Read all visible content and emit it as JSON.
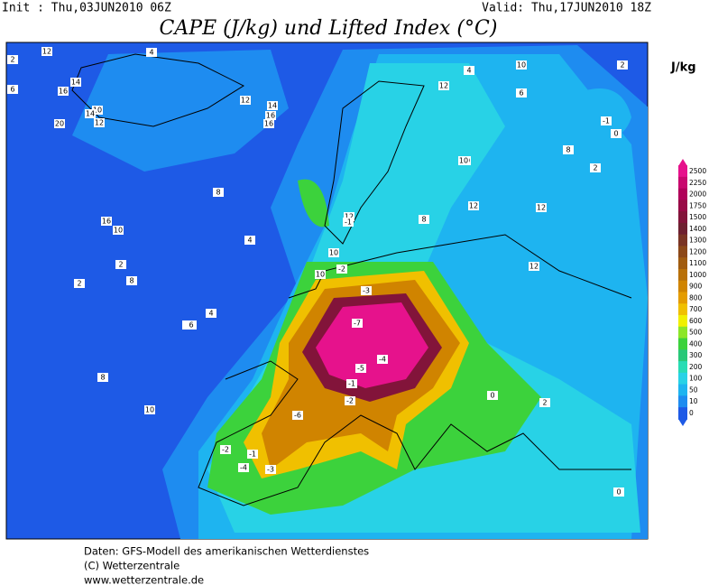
{
  "header": {
    "init": "Init : Thu,03JUN2010 06Z",
    "valid": "Valid: Thu,17JUN2010 18Z",
    "title": "CAPE (J/kg) und Lifted Index (°C)"
  },
  "legend": {
    "unit": "J/kg",
    "levels": [
      "2500",
      "2250",
      "2000",
      "1750",
      "1500",
      "1400",
      "1300",
      "1200",
      "1100",
      "1000",
      "900",
      "800",
      "700",
      "600",
      "500",
      "400",
      "300",
      "200",
      "100",
      "50",
      "10",
      "0"
    ],
    "colors": [
      "#e6128c",
      "#c8086e",
      "#b0005a",
      "#980a46",
      "#82143a",
      "#6e2030",
      "#7a3424",
      "#8c4818",
      "#a05c10",
      "#b87008",
      "#d08400",
      "#e49c00",
      "#f0c000",
      "#f0f000",
      "#8ce628",
      "#3cd23c",
      "#28c878",
      "#28dcb4",
      "#28d2e6",
      "#1eb4f0",
      "#1e8cf0",
      "#1e5ae6"
    ]
  },
  "map": {
    "contour_labels": [
      "12",
      "4",
      "2",
      "6",
      "16",
      "14",
      "20",
      "10",
      "12",
      "14",
      "16",
      "10",
      "8",
      "2",
      "16",
      "16",
      "12",
      "14",
      "12",
      "4",
      "2",
      "10",
      "6",
      "12",
      "10",
      "12",
      "10",
      "12",
      "8",
      "2",
      "8",
      "10",
      "-1",
      "-2",
      "-3",
      "-7",
      "-4",
      "-5",
      "-1",
      "-2",
      "-6",
      "-3",
      "-4",
      "-2",
      "-1",
      "0",
      "2",
      "8",
      "10",
      "8",
      "-1",
      "12",
      "2",
      "4",
      "6",
      "8",
      "4",
      "10",
      "0",
      "0"
    ]
  },
  "footer": {
    "line1": "Daten: GFS-Modell des amerikanischen Wetterdienstes",
    "line2": "(C) Wetterzentrale",
    "line3": "www.wetterzentrale.de"
  }
}
